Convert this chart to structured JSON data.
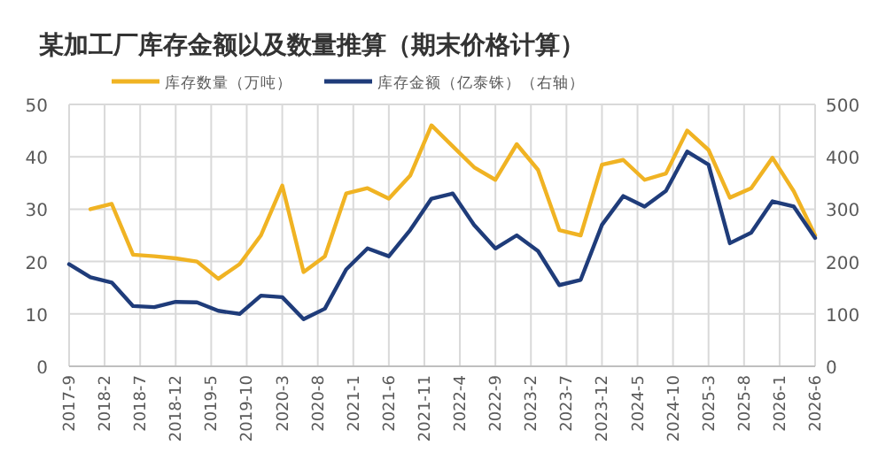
{
  "chart_data": {
    "type": "line",
    "title": "某加工厂库存金额以及数量推算（期末价格计算）",
    "x": [
      "2017-09",
      "2017-12",
      "2018-03",
      "2018-06",
      "2018-09",
      "2018-12",
      "2019-03",
      "2019-06",
      "2019-09",
      "2019-12",
      "2020-03",
      "2020-06",
      "2020-09",
      "2020-12",
      "2021-03",
      "2021-06",
      "2021-09",
      "2021-12",
      "2022-03",
      "2022-06",
      "2022-09",
      "2022-12",
      "2023-03",
      "2023-06",
      "2023-09",
      "2023-12",
      "2024-03",
      "2024-06",
      "2024-09",
      "2024-12",
      "2025-03",
      "2025-06",
      "2025-09",
      "2025-12",
      "2026-03",
      "2026-06"
    ],
    "series": [
      {
        "name": "库存数量（万吨）",
        "color": "#f0b323",
        "values": [
          null,
          30,
          31,
          21.3,
          21,
          20.6,
          20,
          16.7,
          19.5,
          25,
          34.5,
          18,
          21,
          33,
          34,
          32,
          36.4,
          46,
          42,
          38,
          35.6,
          42.4,
          37.5,
          26,
          25,
          38.5,
          39.4,
          35.6,
          36.8,
          45,
          41.3,
          32.2,
          34,
          39.8,
          33.4,
          25
        ]
      },
      {
        "name": "库存金额（亿泰铢）（右轴）",
        "color": "#1f3c7a",
        "axis": "y2",
        "values": [
          195,
          170,
          160,
          115,
          113,
          123,
          122,
          106,
          100,
          135,
          132,
          90,
          110,
          185,
          225,
          210,
          260,
          320,
          330,
          270,
          225,
          250,
          220,
          155,
          165,
          270,
          325,
          305,
          335,
          410,
          385,
          235,
          255,
          315,
          305,
          245
        ]
      }
    ],
    "xlim": [
      "2017-09",
      "2026-06"
    ],
    "xticks": [
      {
        "value": "2017-09",
        "label": "2017-9"
      },
      {
        "value": "2018-02",
        "label": "2018-2"
      },
      {
        "value": "2018-07",
        "label": "2018-7"
      },
      {
        "value": "2018-12",
        "label": "2018-12"
      },
      {
        "value": "2019-05",
        "label": "2019-5"
      },
      {
        "value": "2019-10",
        "label": "2019-10"
      },
      {
        "value": "2020-03",
        "label": "2020-3"
      },
      {
        "value": "2020-08",
        "label": "2020-8"
      },
      {
        "value": "2021-01",
        "label": "2021-1"
      },
      {
        "value": "2021-06",
        "label": "2021-6"
      },
      {
        "value": "2021-11",
        "label": "2021-11"
      },
      {
        "value": "2022-04",
        "label": "2022-4"
      },
      {
        "value": "2022-09",
        "label": "2022-9"
      },
      {
        "value": "2023-02",
        "label": "2023-2"
      },
      {
        "value": "2023-07",
        "label": "2023-7"
      },
      {
        "value": "2023-12",
        "label": "2023-12"
      },
      {
        "value": "2024-05",
        "label": "2024-5"
      },
      {
        "value": "2024-10",
        "label": "2024-10"
      },
      {
        "value": "2025-03",
        "label": "2025-3"
      },
      {
        "value": "2025-08",
        "label": "2025-8"
      },
      {
        "value": "2026-01",
        "label": "2026-1"
      },
      {
        "value": "2026-06",
        "label": "2026-6"
      }
    ],
    "ylim": [
      0,
      50
    ],
    "yticks": [
      0,
      10,
      20,
      30,
      40,
      50
    ],
    "y2lim": [
      0,
      500
    ],
    "y2ticks": [
      0,
      100,
      200,
      300,
      400,
      500
    ],
    "grid": true,
    "legend": "top"
  }
}
